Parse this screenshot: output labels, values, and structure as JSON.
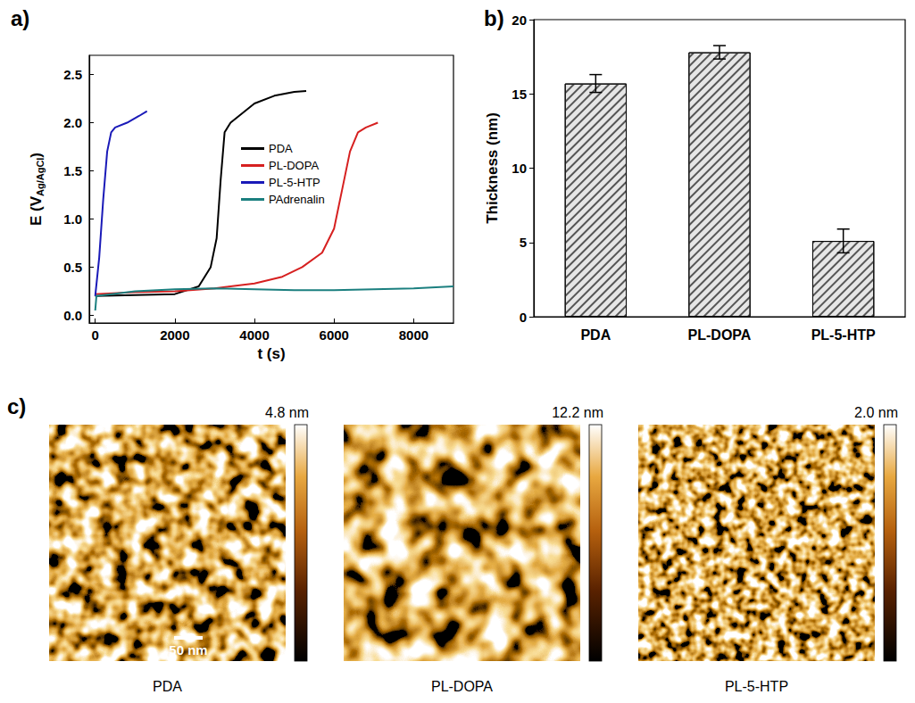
{
  "chart_data": [
    {
      "type": "line",
      "panel_label": "a)",
      "xlabel": "t (s)",
      "ylabel": {
        "text": "E (V",
        "subscript": "Ag/AgCl",
        "suffix": ")"
      },
      "xlim": [
        -150,
        9000
      ],
      "xticks": [
        0,
        2000,
        4000,
        6000,
        8000
      ],
      "ylim": [
        -0.08,
        2.7
      ],
      "yticks": [
        {
          "value": 0,
          "label": "0.0"
        },
        0.5,
        {
          "value": 1,
          "label": "1.0"
        },
        1.5,
        {
          "value": 2,
          "label": "2.0"
        },
        2.5
      ],
      "legend": "center",
      "grid": false,
      "series": [
        {
          "name": "PDA",
          "color": "#000000",
          "x": [
            0,
            1000,
            2000,
            2600,
            2900,
            3050,
            3150,
            3250,
            3400,
            3700,
            4000,
            4500,
            5000,
            5300
          ],
          "values": [
            0.2,
            0.21,
            0.22,
            0.3,
            0.5,
            0.8,
            1.4,
            1.9,
            2.0,
            2.1,
            2.2,
            2.28,
            2.32,
            2.33
          ]
        },
        {
          "name": "PL-DOPA",
          "color": "#d62020",
          "x": [
            0,
            1000,
            2000,
            3000,
            4000,
            4700,
            5200,
            5700,
            6000,
            6200,
            6400,
            6600,
            6800,
            7100
          ],
          "values": [
            0.22,
            0.24,
            0.25,
            0.28,
            0.33,
            0.4,
            0.5,
            0.65,
            0.9,
            1.3,
            1.7,
            1.9,
            1.95,
            2.0
          ]
        },
        {
          "name": "PL-5-HTP",
          "color": "#1a1ab8",
          "x": [
            0,
            100,
            200,
            300,
            400,
            500,
            800,
            1100,
            1300
          ],
          "values": [
            0.2,
            0.6,
            1.2,
            1.7,
            1.9,
            1.95,
            2.0,
            2.07,
            2.12
          ]
        },
        {
          "name": "PAdrenalin",
          "color": "#1b7f7f",
          "x": [
            0,
            30,
            1000,
            2000,
            3000,
            4000,
            5000,
            6000,
            7000,
            8000,
            9000
          ],
          "values": [
            0.05,
            0.2,
            0.25,
            0.27,
            0.28,
            0.27,
            0.26,
            0.26,
            0.27,
            0.28,
            0.3
          ]
        }
      ]
    },
    {
      "type": "bar",
      "panel_label": "b)",
      "ylabel": "Thickness (nm)",
      "categories": [
        "PDA",
        "PL-DOPA",
        "PL-5-HTP"
      ],
      "values": [
        15.7,
        17.8,
        5.1
      ],
      "errors": [
        0.6,
        0.45,
        0.8
      ],
      "color": "#e6e6e6",
      "ylim": [
        0,
        20
      ],
      "yticks": [
        0,
        5,
        10,
        15,
        20
      ],
      "grid": false
    }
  ],
  "afm": {
    "panel_label": "c)",
    "scale_bar": {
      "value": 50,
      "label": "50 nm"
    },
    "images": [
      {
        "caption": "PDA",
        "color_max": {
          "value": 4.8,
          "label": "4.8 nm"
        }
      },
      {
        "caption": "PL-DOPA",
        "color_max": {
          "value": 12.2,
          "label": "12.2 nm"
        }
      },
      {
        "caption": "PL-5-HTP",
        "color_max": {
          "value": 2.0,
          "label": "2.0 nm"
        }
      }
    ]
  }
}
